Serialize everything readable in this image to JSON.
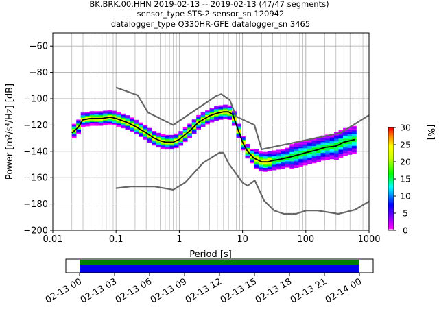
{
  "chart_data": {
    "type": "heatmap",
    "title_lines": [
      "BK.BRK.00.HHN   2019-02-13 -- 2019-02-13  (47/47 segments)",
      "sensor_type STS-2 sensor_sn 120942",
      "datalogger_type Q330HR-GFE datalogger_sn 3465"
    ],
    "xlabel": "Period [s]",
    "ylabel": "Power [m²/s⁴/Hz] [dB]",
    "xscale": "log",
    "xlim": [
      0.01,
      1000
    ],
    "ylim": [
      -200,
      -50
    ],
    "xticks": [
      {
        "value": 0.01,
        "label": "0.01"
      },
      {
        "value": 0.1,
        "label": "0.1"
      },
      {
        "value": 1,
        "label": "1"
      },
      {
        "value": 10,
        "label": "10"
      },
      {
        "value": 100,
        "label": "100"
      },
      {
        "value": 1000,
        "label": "1000"
      }
    ],
    "yticks": [
      -60,
      -80,
      -100,
      -120,
      -140,
      -160,
      -180,
      -200
    ],
    "grid": true,
    "colorbar": {
      "label": "[%]",
      "range": [
        0,
        30
      ],
      "ticks": [
        0,
        5,
        10,
        15,
        20,
        25,
        30
      ]
    },
    "mean_curve": {
      "x": [
        0.02,
        0.025,
        0.03,
        0.04,
        0.06,
        0.08,
        0.1,
        0.15,
        0.2,
        0.3,
        0.4,
        0.5,
        0.6,
        0.8,
        1.0,
        1.5,
        2.0,
        3.0,
        4.0,
        5.0,
        6.0,
        7.0,
        8.0,
        10,
        12,
        15,
        20,
        25,
        30,
        40,
        60,
        100,
        150,
        200,
        300,
        400,
        600
      ],
      "y": [
        -126,
        -122,
        -116,
        -115,
        -115,
        -114,
        -115,
        -118,
        -121,
        -126,
        -130,
        -132,
        -133,
        -133,
        -131,
        -124,
        -118,
        -113,
        -111,
        -110,
        -110,
        -112,
        -120,
        -133,
        -140,
        -145,
        -148,
        -148,
        -147,
        -146,
        -144,
        -141,
        -139,
        -137,
        -136,
        -133,
        -131
      ]
    },
    "nhnm": {
      "x": [
        0.1,
        0.22,
        0.32,
        0.8,
        3.8,
        4.6,
        6.3,
        7.9,
        15.4,
        20,
        354.8,
        1000
      ],
      "y": [
        -91.5,
        -97.4,
        -110.5,
        -120,
        -98,
        -96.5,
        -101,
        -113.5,
        -120,
        -138.5,
        -126,
        -112.5
      ]
    },
    "nlnm": {
      "x": [
        0.1,
        0.17,
        0.4,
        0.8,
        1.24,
        2.4,
        4.3,
        5.0,
        6.0,
        10.0,
        12.0,
        15.6,
        21.9,
        31.6,
        45.0,
        70.0,
        101.0,
        154.0,
        328.0,
        600.0,
        1000.0
      ],
      "y": [
        -168,
        -166.7,
        -166.7,
        -169.2,
        -163.7,
        -148.6,
        -141.1,
        -141.1,
        -149,
        -163.8,
        -166.2,
        -162.1,
        -177.5,
        -185,
        -187.5,
        -187.5,
        -185,
        -185,
        -187.5,
        -184.4,
        -178
      ]
    },
    "time_axis": {
      "ticks": [
        "02-13 00",
        "02-13 03",
        "02-13 06",
        "02-13 09",
        "02-13 12",
        "02-13 15",
        "02-13 18",
        "02-13 21",
        "02-14 00"
      ],
      "coverage_colors": {
        "data": "#0000ee",
        "gaps_none": "#008000"
      }
    },
    "colors": {
      "model_lines": "#666666",
      "mean_line": "#000000",
      "grid": "#b0b0b0"
    }
  }
}
